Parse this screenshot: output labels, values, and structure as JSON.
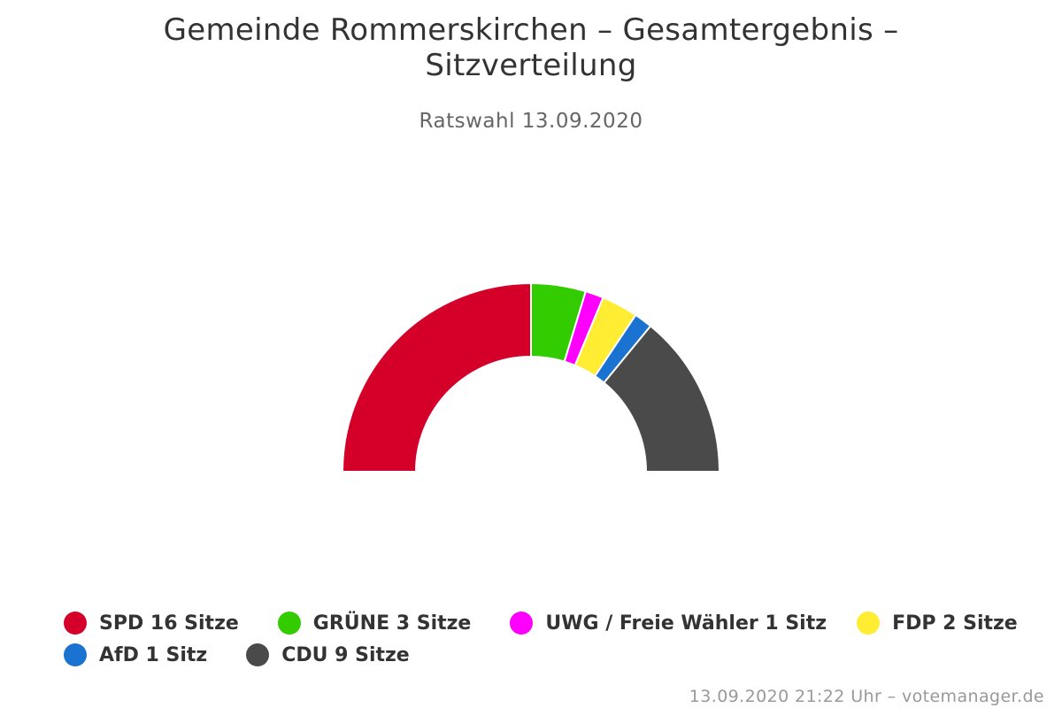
{
  "chart_data": {
    "type": "pie",
    "variant": "semi-circle-donut",
    "title": "Gemeinde Rommerskirchen – Gesamtergebnis – Sitzverteilung",
    "subtitle": "Ratswahl 13.09.2020",
    "legend_position": "bottom",
    "slices": [
      {
        "name": "SPD",
        "value": 16,
        "label": "SPD 16 Sitze",
        "color": "#d4002a"
      },
      {
        "name": "GRÜNE",
        "value": 3,
        "label": "GRÜNE 3 Sitze",
        "color": "#33cc00"
      },
      {
        "name": "UWG / Freie Wähler",
        "value": 1,
        "label": "UWG / Freie Wähler 1 Sitz",
        "color": "#ff00ff"
      },
      {
        "name": "FDP",
        "value": 2,
        "label": "FDP 2 Sitze",
        "color": "#ffed33"
      },
      {
        "name": "AfD",
        "value": 1,
        "label": "AfD 1 Sitz",
        "color": "#1a73d1"
      },
      {
        "name": "CDU",
        "value": 9,
        "label": "CDU 9 Sitze",
        "color": "#4a4a4a"
      }
    ]
  },
  "credits": "13.09.2020 21:22 Uhr – votemanager.de"
}
